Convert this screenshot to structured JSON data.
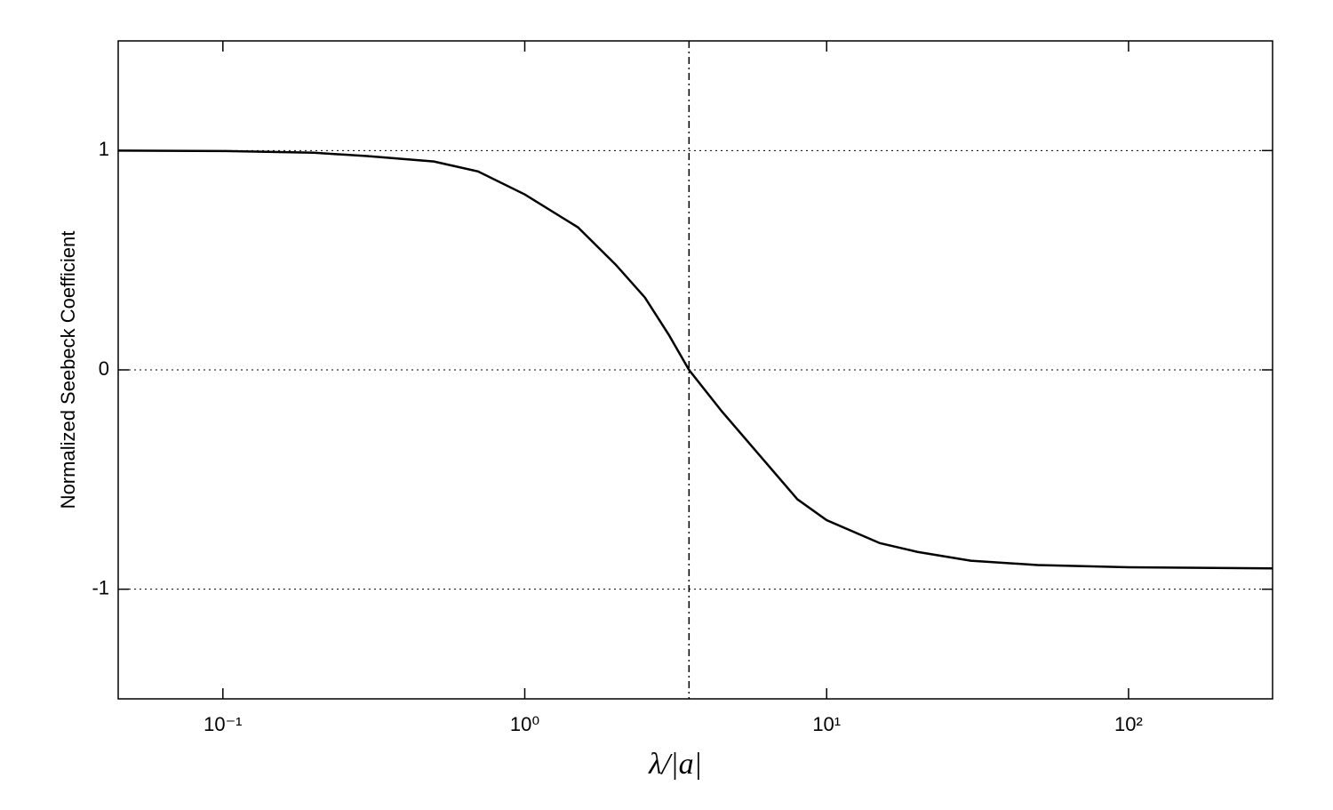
{
  "chart_data": {
    "type": "line",
    "x_label": "λ/|a|",
    "y_label": "Normalized Seebeck Coefficient",
    "x": [
      0.045,
      0.1,
      0.2,
      0.3,
      0.5,
      0.7,
      1,
      1.5,
      2,
      2.5,
      3,
      3.5,
      4.5,
      6,
      8,
      10,
      15,
      20,
      30,
      50,
      100,
      300
    ],
    "series": [
      {
        "color": "#000000",
        "values": [
          1.0,
          0.998,
          0.99,
          0.975,
          0.95,
          0.905,
          0.8,
          0.65,
          0.48,
          0.33,
          0.16,
          0,
          -0.19,
          -0.39,
          -0.59,
          -0.685,
          -0.79,
          -0.83,
          -0.87,
          -0.89,
          -0.9,
          -0.905
        ]
      }
    ],
    "xscale": "log",
    "xlim": [
      0.045,
      300
    ],
    "xticks": [
      {
        "value": 0.1,
        "label": "10⁻¹"
      },
      {
        "value": 1,
        "label": "10⁰"
      },
      {
        "value": 10,
        "label": "10¹"
      },
      {
        "value": 100,
        "label": "10²"
      }
    ],
    "ylim": [
      -1.5,
      1.5
    ],
    "yticks": [
      -1,
      0,
      1
    ],
    "grid": "y",
    "vline": 3.5
  }
}
